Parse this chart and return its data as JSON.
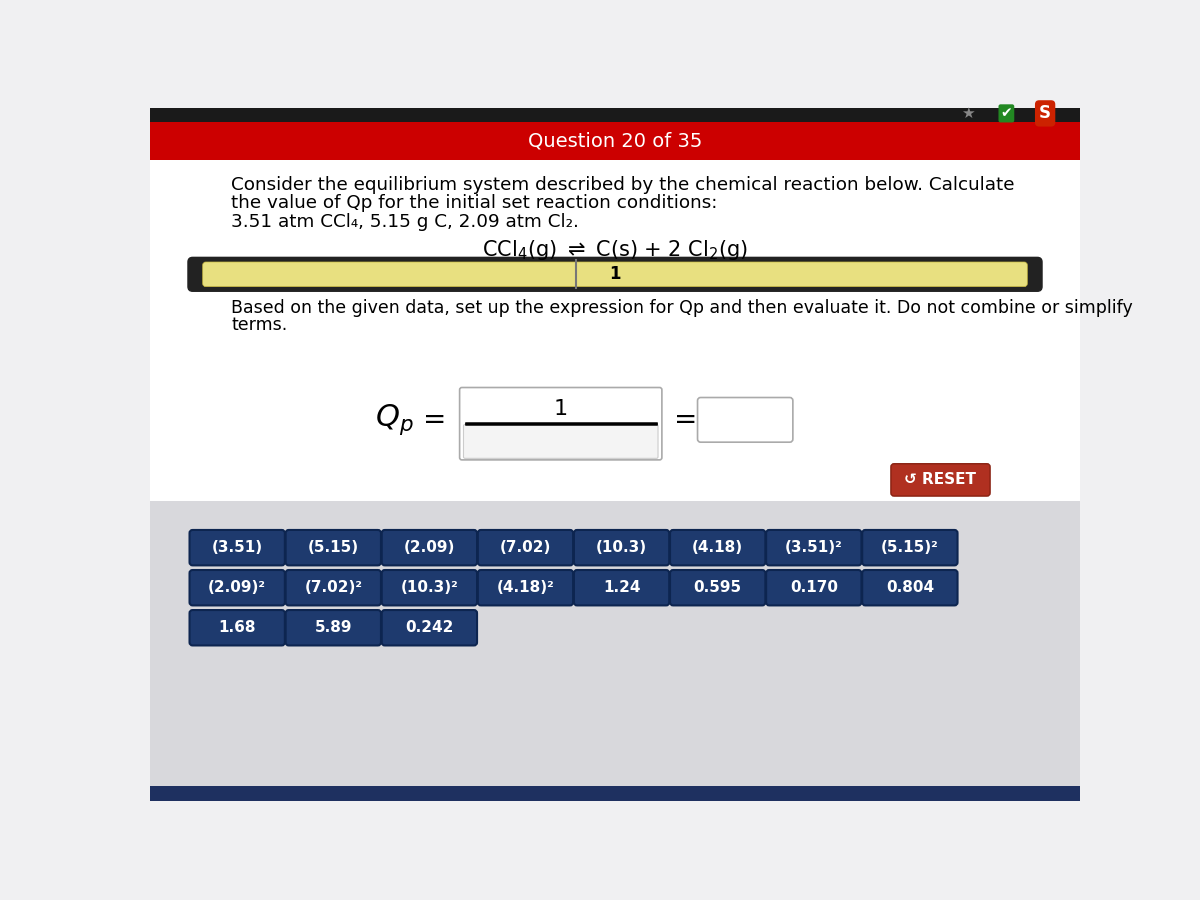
{
  "title_bar_color": "#cc0000",
  "title_text": "Question 20 of 35",
  "title_text_color": "#ffffff",
  "main_bg": "#f0f0f2",
  "white_bg": "#ffffff",
  "gray_bg": "#d8d8dc",
  "question_text_line1": "Consider the equilibrium system described by the chemical reaction below. Calculate",
  "question_text_line2": "the value of Qp for the initial set reaction conditions:",
  "question_text_line3": "3.51 atm CCl₄, 5.15 g C, 2.09 atm Cl₂.",
  "progress_bar_yellow": "#e8e080",
  "progress_bar_dark": "#222222",
  "instruction_line1": "Based on the given data, set up the expression for Qp and then evaluate it. Do not combine or simplify",
  "instruction_line2": "terms.",
  "reset_btn_color": "#b03020",
  "reset_btn_text": "↺ RESET",
  "button_color": "#1e3a6e",
  "button_text_color": "#ffffff",
  "buttons_row1": [
    "(3.51)",
    "(5.15)",
    "(2.09)",
    "(7.02)",
    "(10.3)",
    "(4.18)",
    "(3.51)²",
    "(5.15)²"
  ],
  "buttons_row2": [
    "(2.09)²",
    "(7.02)²",
    "(10.3)²",
    "(4.18)²",
    "1.24",
    "0.595",
    "0.170",
    "0.804"
  ],
  "buttons_row3": [
    "1.68",
    "5.89",
    "0.242"
  ],
  "top_bar_dark": "#1a1a1a",
  "bottom_bar_dark": "#1e3060"
}
